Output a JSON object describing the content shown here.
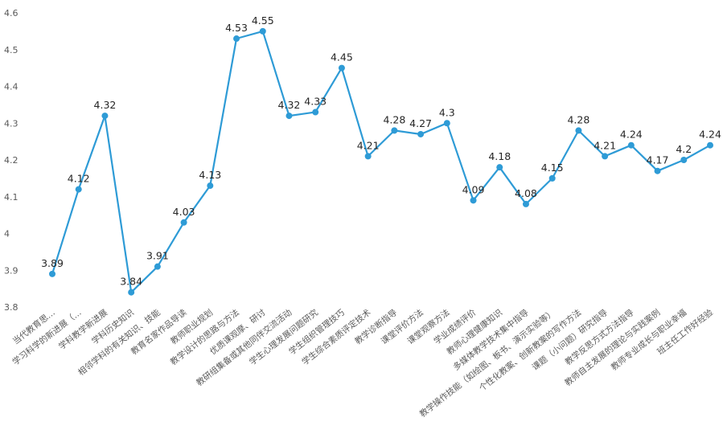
{
  "chart_data": {
    "type": "line",
    "title": "",
    "xlabel": "",
    "ylabel": "",
    "ylim": [
      3.8,
      4.6
    ],
    "yticks": [
      "3.8",
      "3.9",
      "4",
      "4.1",
      "4.2",
      "4.3",
      "4.4",
      "4.5",
      "4.6"
    ],
    "grid": false,
    "legend": "none",
    "line_color": "#2E9BD6",
    "categories": [
      "当代教育思…",
      "学习科学的新进展（…",
      "学科教学新进展",
      "学科历史知识",
      "相邻学科的有关知识、技能",
      "教育名家作品导读",
      "教师职业规划",
      "教学设计的思路与方法",
      "优质课观摩、研讨",
      "教研组集备或其他同伴交流活动",
      "学生心理发展问题研究",
      "学生组织管理技巧",
      "学生综合素质评定技术",
      "教学诊断指导",
      "课堂评价方法",
      "课堂观察方法",
      "学业成绩评价",
      "教师心理健康知识",
      "多媒体教学技术集中指导",
      "教学操作技能（如绘图、板书、演示实验等）",
      "个性化教案、创新教案的写作方法",
      "课题（小问题）研究指导",
      "教学反思方式方法指导",
      "教师自主发展的理论与实践案例",
      "教师专业成长与职业幸福",
      "班主任工作好经验"
    ],
    "values": [
      3.89,
      4.12,
      4.32,
      3.84,
      3.91,
      4.03,
      4.13,
      4.53,
      4.55,
      4.32,
      4.33,
      4.45,
      4.21,
      4.28,
      4.27,
      4.3,
      4.09,
      4.18,
      4.08,
      4.15,
      4.28,
      4.21,
      4.24,
      4.17,
      4.2,
      4.24
    ],
    "data_labels": [
      "3.89",
      "4.12",
      "4.32",
      "3.84",
      "3.91",
      "4.03",
      "4.13",
      "4.53",
      "4.55",
      "4.32",
      "4.33",
      "4.45",
      "4.21",
      "4.28",
      "4.27",
      "4.3",
      "4.09",
      "4.18",
      "4.08",
      "4.15",
      "4.28",
      "4.21",
      "4.24",
      "4.17",
      "4.2",
      "4.24"
    ]
  }
}
